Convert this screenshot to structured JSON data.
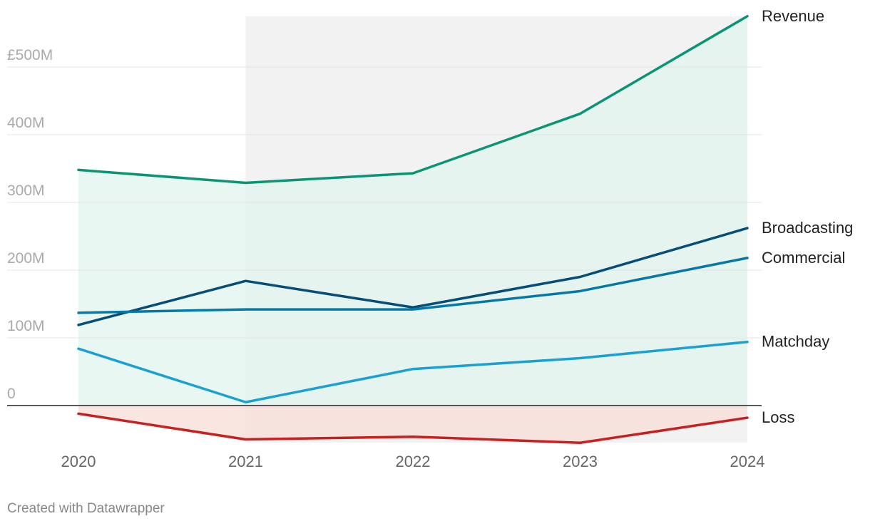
{
  "chart_data": {
    "type": "line",
    "x": [
      "2020",
      "2021",
      "2022",
      "2023",
      "2024"
    ],
    "yunit": "£M",
    "ylim": [
      -55,
      575
    ],
    "yticks": [
      {
        "value": 0,
        "label": "0"
      },
      {
        "value": 100,
        "label": "100M"
      },
      {
        "value": 200,
        "label": "200M"
      },
      {
        "value": 300,
        "label": "300M"
      },
      {
        "value": 400,
        "label": "400M"
      },
      {
        "value": 500,
        "label": "£500M"
      }
    ],
    "grid": true,
    "shaded_range": [
      "2021",
      "2024"
    ],
    "series": [
      {
        "name": "Revenue",
        "color": "#0a9475",
        "area": true,
        "area_color": "#dff4ec",
        "values": [
          348,
          329,
          343,
          431,
          575
        ]
      },
      {
        "name": "Broadcasting",
        "color": "#064d78",
        "values": [
          119,
          184,
          145,
          190,
          262
        ]
      },
      {
        "name": "Commercial",
        "color": "#0479a8",
        "values": [
          137,
          142,
          142,
          169,
          218
        ]
      },
      {
        "name": "Matchday",
        "color": "#1aa0d2",
        "values": [
          84,
          5,
          54,
          70,
          94
        ]
      },
      {
        "name": "Loss",
        "color": "#c62020",
        "area": true,
        "area_color": "#f6ddd6",
        "values": [
          -12,
          -50,
          -46,
          -55,
          -18
        ]
      }
    ]
  },
  "footer": {
    "credit": "Created with Datawrapper"
  }
}
